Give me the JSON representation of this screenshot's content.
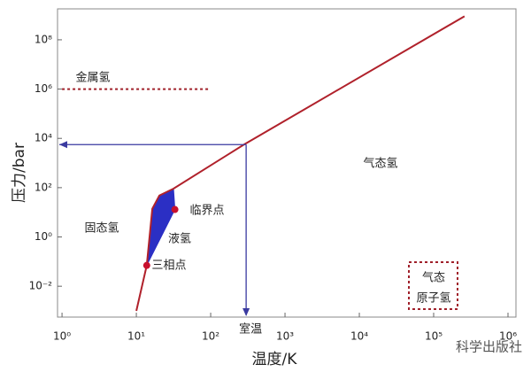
{
  "chart_data": {
    "type": "line",
    "x_label": "温度/K",
    "y_label": "压力/bar",
    "xscale": "log",
    "yscale": "log",
    "xlim": [
      0.87,
      1280000
    ],
    "ylim": [
      0.00056,
      1800000000
    ],
    "xticks": [
      {
        "value": 1,
        "label": "10⁰"
      },
      {
        "value": 10,
        "label": "10¹"
      },
      {
        "value": 100,
        "label": "10²"
      },
      {
        "value": 1000,
        "label": "10³"
      },
      {
        "value": 10000,
        "label": "10⁴"
      },
      {
        "value": 100000,
        "label": "10⁵"
      },
      {
        "value": 1000000,
        "label": "10⁶"
      }
    ],
    "yticks": [
      {
        "value": 0.01,
        "label": "10⁻²"
      },
      {
        "value": 1,
        "label": "10⁰"
      },
      {
        "value": 100,
        "label": "10²"
      },
      {
        "value": 10000,
        "label": "10⁴"
      },
      {
        "value": 1000000,
        "label": "10⁶"
      },
      {
        "value": 100000000,
        "label": "10⁸"
      }
    ],
    "liquid_region": {
      "color": "#2b2fc4",
      "x": [
        13.8,
        16.4,
        20.4,
        31.6,
        33
      ],
      "y": [
        0.07,
        14,
        48,
        91,
        13
      ]
    },
    "phase_line": {
      "color": "#b0212b",
      "x": [
        10,
        13.8,
        16.4,
        20.4,
        31.6,
        280,
        260000
      ],
      "y": [
        0.001,
        0.07,
        14,
        48,
        91,
        5600,
        900000000
      ]
    },
    "special_points": {
      "color": "#c8102e",
      "x": [
        13.8,
        33
      ],
      "y": [
        0.07,
        13
      ]
    },
    "metallic_line": {
      "color": "#a0202a",
      "x": [
        1,
        100
      ],
      "y": [
        1000000,
        1000000
      ]
    },
    "room_temperature": {
      "color": "#3a3aa0",
      "x": 300,
      "y": 5600,
      "label": "室温"
    },
    "annotations": [
      "金属氢",
      "气态氢",
      "固态氢",
      "液氢",
      "临界点",
      "三相点",
      "气态",
      "原子氢"
    ],
    "watermark": "科学出版社"
  }
}
